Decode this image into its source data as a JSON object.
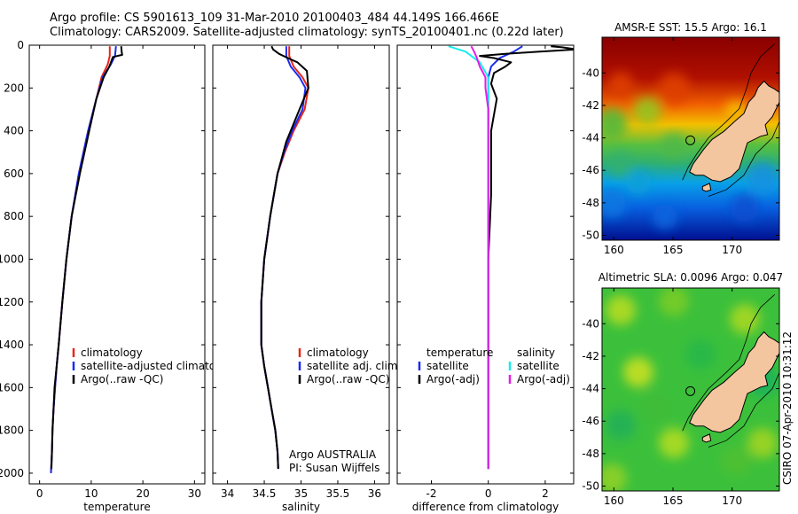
{
  "header": {
    "line1": "Argo profile: CS 5901613_109 31-Mar-2010 20100403_484 44.149S 166.466E",
    "line2": "Climatology: CARS2009. Satellite-adjusted climatology: synTS_20100401.nc (0.22d later)"
  },
  "credit": "CSIRO 07-Apr-2010 10:31:12",
  "colors": {
    "climatology": "#e8261a",
    "satellite": "#1a2cf0",
    "argo": "#000000",
    "salinity_satellite": "#18ecec",
    "salinity_argo": "#e61ce6",
    "land": "#f4c6a0"
  },
  "chart_data": [
    {
      "type": "line",
      "xlabel": "temperature",
      "ylabel": "",
      "xlim": [
        -2,
        32
      ],
      "ylim": [
        2050,
        0
      ],
      "xticks": [
        0,
        10,
        20,
        30
      ],
      "yticks": [
        0,
        200,
        400,
        600,
        800,
        1000,
        1200,
        1400,
        1600,
        1800,
        2000
      ],
      "legend": [
        "climatology",
        "satellite-adjusted climatology",
        "Argo(..raw -QC)"
      ],
      "series": [
        {
          "name": "climatology",
          "color": "climatology",
          "x": [
            13.6,
            13.6,
            13.2,
            12.0,
            11.0,
            9.4,
            7.6,
            6.2,
            5.2,
            4.4,
            3.7,
            3.3,
            3.0,
            2.7,
            2.5,
            2.4,
            2.3,
            2.2
          ],
          "y": [
            5,
            50,
            90,
            150,
            250,
            400,
            600,
            800,
            1000,
            1200,
            1400,
            1500,
            1600,
            1700,
            1800,
            1900,
            1950,
            2000
          ]
        },
        {
          "name": "satellite-adjusted climatology",
          "color": "satellite",
          "x": [
            14.8,
            14.6,
            13.8,
            12.2,
            11.0,
            9.4,
            7.6,
            6.2,
            5.2,
            4.4,
            3.7,
            3.3,
            3.0,
            2.7,
            2.5,
            2.4,
            2.3,
            2.2
          ],
          "y": [
            5,
            50,
            90,
            150,
            250,
            400,
            600,
            800,
            1000,
            1200,
            1400,
            1500,
            1600,
            1700,
            1800,
            1900,
            1950,
            2000
          ]
        },
        {
          "name": "Argo(..raw -QC)",
          "color": "argo",
          "x": [
            15.8,
            15.9,
            16.0,
            14.2,
            13.5,
            12.4,
            11.0,
            9.6,
            7.8,
            6.2,
            5.2,
            4.4,
            3.7,
            3.3,
            2.9,
            2.7,
            2.5,
            2.4,
            2.3
          ],
          "y": [
            5,
            30,
            45,
            55,
            100,
            150,
            250,
            400,
            600,
            800,
            1000,
            1200,
            1400,
            1500,
            1600,
            1700,
            1800,
            1900,
            1980
          ]
        }
      ]
    },
    {
      "type": "line",
      "xlabel": "salinity",
      "xlim": [
        33.8,
        36.2
      ],
      "ylim": [
        2050,
        0
      ],
      "xticks": [
        34,
        34.5,
        35,
        35.5,
        36
      ],
      "xticklabels": [
        "34",
        "34.5",
        "35",
        "35.5",
        "36"
      ],
      "legend": [
        "climatology",
        "satellite adj. clim.",
        "Argo(..raw -QC)"
      ],
      "annotation": [
        "Argo AUSTRALIA",
        "PI: Susan Wijffels"
      ],
      "series": [
        {
          "name": "climatology",
          "color": "climatology",
          "x": [
            34.84,
            34.84,
            34.9,
            35.02,
            35.1,
            35.05,
            34.9,
            34.78,
            34.68,
            34.58,
            34.5,
            34.46,
            34.46,
            34.5,
            34.55,
            34.6,
            34.65,
            34.68,
            34.69
          ],
          "y": [
            5,
            50,
            100,
            150,
            200,
            300,
            400,
            500,
            600,
            800,
            1000,
            1200,
            1400,
            1500,
            1600,
            1700,
            1800,
            1900,
            1980
          ]
        },
        {
          "name": "satellite adj. clim.",
          "color": "satellite",
          "x": [
            34.8,
            34.8,
            34.86,
            34.98,
            35.06,
            35.02,
            34.88,
            34.77,
            34.68,
            34.58,
            34.5,
            34.46,
            34.46,
            34.5,
            34.55,
            34.6,
            34.65,
            34.68,
            34.69
          ],
          "y": [
            5,
            50,
            100,
            150,
            200,
            300,
            400,
            500,
            600,
            800,
            1000,
            1200,
            1400,
            1500,
            1600,
            1700,
            1800,
            1900,
            1980
          ]
        },
        {
          "name": "Argo(..raw -QC)",
          "color": "argo",
          "x": [
            34.6,
            34.62,
            34.7,
            34.82,
            34.95,
            35.08,
            35.1,
            34.98,
            34.8,
            34.68,
            34.58,
            34.5,
            34.46,
            34.46,
            34.5,
            34.55,
            34.6,
            34.65,
            34.68,
            34.69
          ],
          "y": [
            5,
            20,
            40,
            60,
            80,
            120,
            200,
            300,
            450,
            600,
            800,
            1000,
            1200,
            1400,
            1500,
            1600,
            1700,
            1800,
            1900,
            1980
          ]
        }
      ]
    },
    {
      "type": "line",
      "xlabel": "difference from climatology",
      "xlim": [
        -3.2,
        3.0
      ],
      "ylim": [
        2050,
        0
      ],
      "xticks": [
        -2,
        0,
        2
      ],
      "legend_left_title": "temperature",
      "legend_left": [
        "satellite",
        "Argo(-adj)"
      ],
      "legend_right_title": "salinity",
      "legend_right": [
        "satellite",
        "Argo(-adj)"
      ],
      "series": [
        {
          "name": "temperature satellite",
          "color": "satellite",
          "x": [
            1.2,
            0.9,
            0.4,
            0.1,
            0.0,
            0.0,
            0.0,
            0.0,
            0.0,
            0.0,
            0.0
          ],
          "y": [
            5,
            30,
            60,
            100,
            150,
            300,
            600,
            1000,
            1400,
            1800,
            1980
          ]
        },
        {
          "name": "temperature Argo(-adj)",
          "color": "argo",
          "x": [
            2.2,
            2.6,
            3.1,
            1.8,
            0.6,
            -0.3,
            0.2,
            0.8,
            0.6,
            0.2,
            0.1,
            0.3,
            0.1,
            0.1,
            0.0,
            0.0,
            0.0,
            0.0
          ],
          "y": [
            5,
            10,
            20,
            30,
            40,
            50,
            60,
            80,
            100,
            130,
            180,
            250,
            400,
            700,
            1000,
            1400,
            1800,
            1980
          ]
        },
        {
          "name": "salinity satellite",
          "color": "salinity_satellite",
          "x": [
            -1.4,
            -0.8,
            -0.3,
            0.0,
            0.0,
            0.0,
            0.0,
            0.0,
            0.0
          ],
          "y": [
            5,
            30,
            80,
            150,
            300,
            600,
            1000,
            1500,
            1980
          ]
        },
        {
          "name": "salinity Argo(-adj)",
          "color": "salinity_argo",
          "x": [
            -0.6,
            -0.5,
            -0.4,
            -0.3,
            -0.1,
            -0.1,
            0.0,
            0.0,
            0.0,
            0.0,
            0.0
          ],
          "y": [
            5,
            30,
            60,
            100,
            150,
            200,
            300,
            500,
            1000,
            1500,
            1980
          ]
        }
      ]
    },
    {
      "type": "heatmap",
      "title": "AMSR-E SST: 15.5 Argo: 16.1",
      "xlim": [
        159,
        174
      ],
      "ylim": [
        -50.3,
        -37.8
      ],
      "xticks": [
        160,
        165,
        170
      ],
      "yticks": [
        -40,
        -42,
        -44,
        -46,
        -48,
        -50
      ],
      "marker": {
        "lon": 166.466,
        "lat": -44.149
      }
    },
    {
      "type": "heatmap",
      "title": "Altimetric SLA: 0.0096 Argo: 0.047",
      "xlim": [
        159,
        174
      ],
      "ylim": [
        -50.3,
        -37.8
      ],
      "xticks": [
        160,
        165,
        170
      ],
      "yticks": [
        -40,
        -42,
        -44,
        -46,
        -48,
        -50
      ],
      "marker": {
        "lon": 166.466,
        "lat": -44.149
      }
    }
  ]
}
